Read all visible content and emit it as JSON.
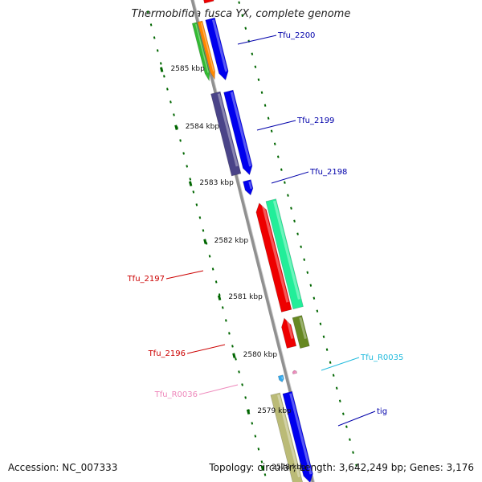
{
  "title": "Thermobifida fusca YX, complete genome",
  "footer": {
    "accession_label": "Accession:",
    "accession": "NC_007333",
    "topology_label": "Topology:",
    "topology": "circular",
    "length_label": "Length:",
    "length": "3,642,249 bp",
    "genes_label": "Genes:",
    "genes": "3,176"
  },
  "ticks": [
    {
      "label": "2585 kbp"
    },
    {
      "label": "2584 kbp"
    },
    {
      "label": "2583 kbp"
    },
    {
      "label": "2582 kbp"
    },
    {
      "label": "2581 kbp"
    },
    {
      "label": "2580 kbp"
    },
    {
      "label": "2579 kbp"
    },
    {
      "label": "2578 kbp"
    }
  ],
  "genes": [
    {
      "name": "Tfu_2200",
      "color": "#0000aa"
    },
    {
      "name": "Tfu_2199",
      "color": "#0000aa"
    },
    {
      "name": "Tfu_2198",
      "color": "#0000aa"
    },
    {
      "name": "Tfu_2197",
      "color": "#cc0000"
    },
    {
      "name": "Tfu_2196",
      "color": "#cc0000"
    },
    {
      "name": "Tfu_R0035",
      "color": "#22bbdd"
    },
    {
      "name": "Tfu_R0036",
      "color": "#ee88bb"
    },
    {
      "name": "tig",
      "color": "#0000aa"
    }
  ],
  "colors": {
    "backbone": "#909090",
    "tick": "#006600",
    "blue_feature": "#0000ee",
    "red_feature": "#ee0000",
    "teal_feature": "#22ee99",
    "olive_feature": "#668822",
    "purple_feature": "#4a4488",
    "khaki_feature": "#bbbb77",
    "orange_feature": "#ff8800",
    "green_feature": "#33bb33"
  }
}
